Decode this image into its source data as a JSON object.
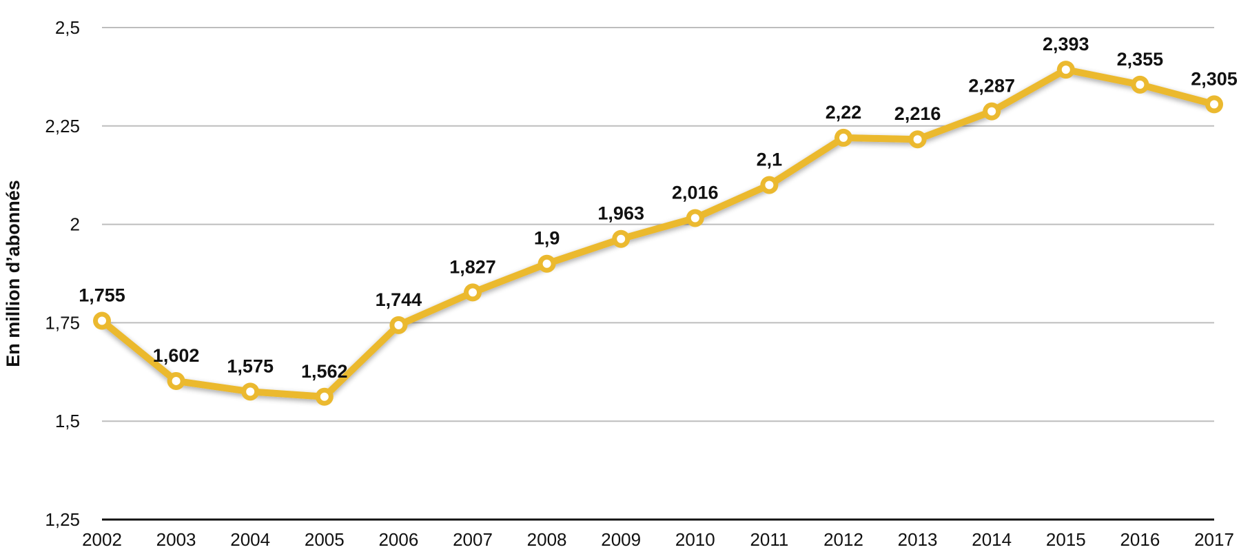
{
  "chart_data": {
    "type": "line",
    "title": "",
    "xlabel": "",
    "ylabel": "En million d’abonnés",
    "categories": [
      "2002",
      "2003",
      "2004",
      "2005",
      "2006",
      "2007",
      "2008",
      "2009",
      "2010",
      "2011",
      "2012",
      "2013",
      "2014",
      "2015",
      "2016",
      "2017"
    ],
    "series": [
      {
        "values": [
          1.755,
          1.602,
          1.575,
          1.562,
          1.744,
          1.827,
          1.9,
          1.963,
          2.016,
          2.1,
          2.22,
          2.216,
          2.287,
          2.393,
          2.355,
          2.305
        ],
        "labels": [
          "1,755",
          "1,602",
          "1,575",
          "1,562",
          "1,744",
          "1,827",
          "1,9",
          "1,963",
          "2,016",
          "2,1",
          "2,22",
          "2,216",
          "2,287",
          "2,393",
          "2,355",
          "2,305"
        ]
      }
    ],
    "ylim": [
      1.25,
      2.5
    ],
    "yticks": [
      1.25,
      1.5,
      1.75,
      2,
      2.25,
      2.5
    ],
    "ytick_labels": [
      "1,25",
      "1,5",
      "1,75",
      "2",
      "2,25",
      "2,5"
    ],
    "grid": true,
    "legend": "none",
    "colors": {
      "line": "#EBB92F",
      "marker_fill": "#ffffff"
    }
  }
}
